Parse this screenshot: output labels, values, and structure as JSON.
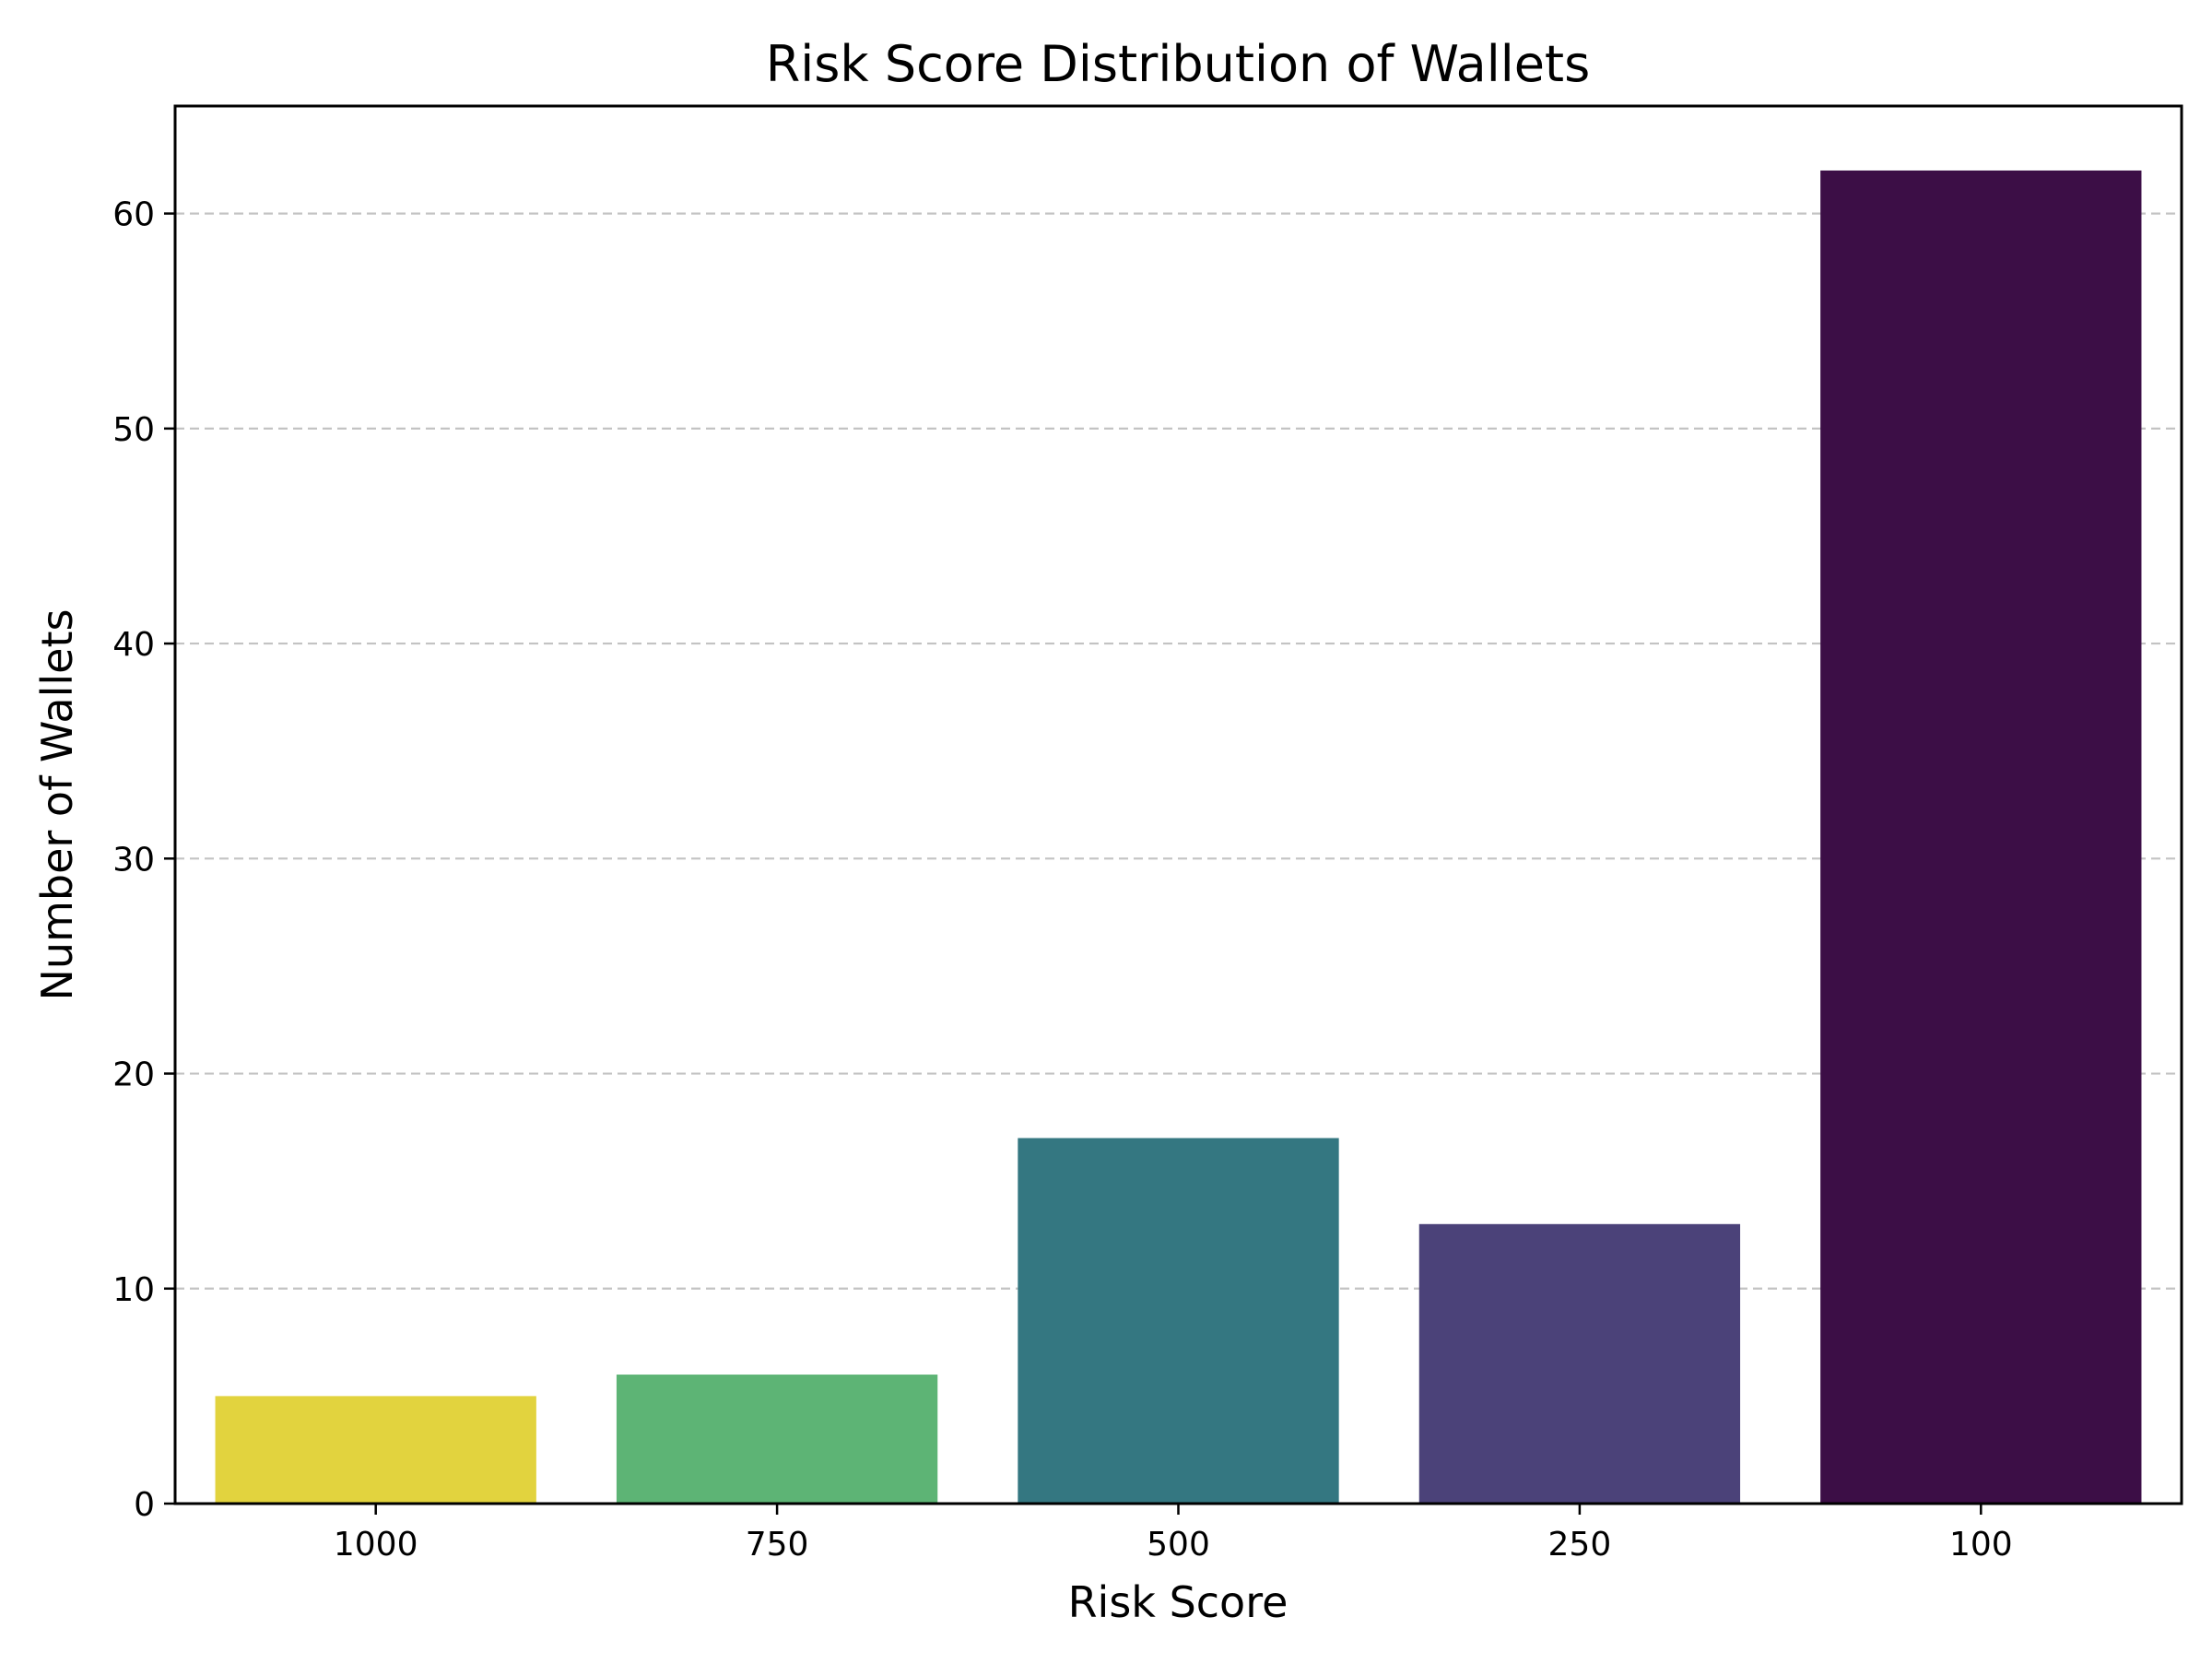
{
  "chart_data": {
    "type": "bar",
    "title": "Risk Score Distribution of Wallets",
    "xlabel": "Risk Score",
    "ylabel": "Number of Wallets",
    "categories": [
      "1000",
      "750",
      "500",
      "250",
      "100"
    ],
    "values": [
      5,
      6,
      17,
      13,
      62
    ],
    "bar_colors": [
      "#e2d33e",
      "#5db475",
      "#347781",
      "#4b4279",
      "#3c0e46"
    ],
    "ylim": [
      0,
      65
    ],
    "yticks": [
      0,
      10,
      20,
      30,
      40,
      50,
      60
    ],
    "grid": "y-dashed",
    "legend": "none"
  }
}
